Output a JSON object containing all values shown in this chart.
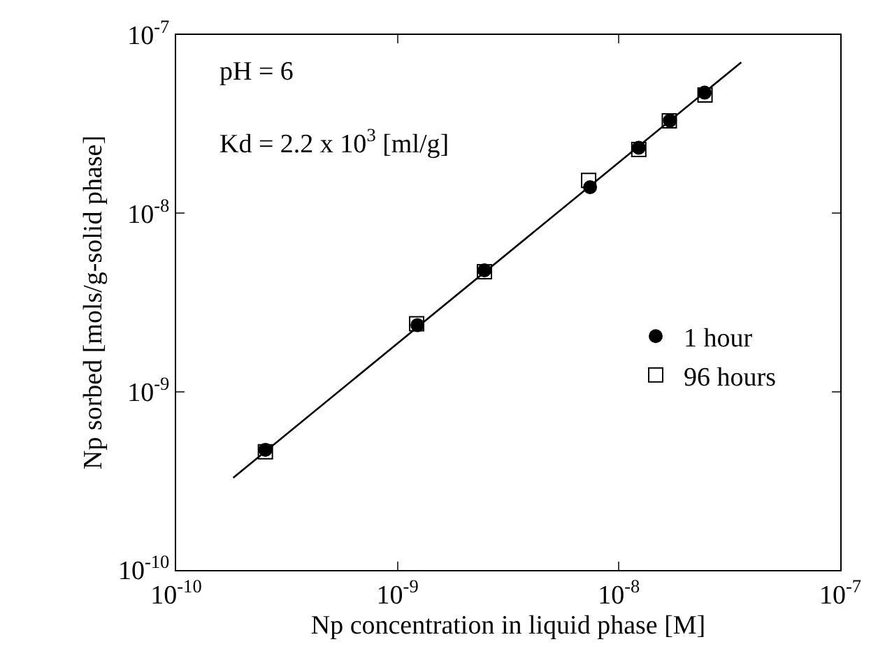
{
  "chart_data": {
    "type": "scatter",
    "xlabel": "Np concentration in liquid phase [M]",
    "ylabel": "Np sorbed [mols/g-solid phase]",
    "annotations": [
      "pH = 6",
      "Kd = 2.2 x 10$^{3}$ [ml/g]"
    ],
    "log": "xy",
    "legend": "right",
    "xlim": [
      1e-10,
      1e-07
    ],
    "ylim": [
      1e-10,
      1e-07
    ],
    "xticks": [
      {
        "value": 1e-10,
        "label": "10$^{-10}$"
      },
      {
        "value": 1e-09,
        "label": "10$^{-9}$"
      },
      {
        "value": 1e-08,
        "label": "10$^{-8}$"
      },
      {
        "value": 1e-07,
        "label": "10$^{-7}$"
      }
    ],
    "yticks": [
      {
        "value": 1e-10,
        "label": "10$^{-10}$"
      },
      {
        "value": 1e-09,
        "label": "10$^{-9}$"
      },
      {
        "value": 1e-08,
        "label": "10$^{-8}$"
      },
      {
        "value": 1e-07,
        "label": "10$^{-7}$"
      }
    ],
    "series": [
      {
        "type": "line",
        "marker": "none",
        "color": "#000000",
        "x": [
          1.81e-10,
          3.57e-08
        ],
        "values": [
          3.29e-10,
          7.02e-08
        ]
      },
      {
        "name": "96 hours",
        "marker": "square",
        "color": "#000000",
        "x": [
          2.53e-10,
          1.22e-09,
          2.47e-09,
          7.3e-09,
          1.23e-08,
          1.69e-08,
          2.45e-08
        ],
        "values": [
          4.6e-10,
          2.4e-09,
          4.7e-09,
          1.53e-08,
          2.28e-08,
          3.3e-08,
          4.6e-08
        ]
      },
      {
        "name": "1 hour",
        "marker": "circle",
        "color": "#000000",
        "x": [
          2.53e-10,
          1.23e-09,
          2.47e-09,
          7.41e-09,
          1.23e-08,
          1.7e-08,
          2.44e-08
        ],
        "values": [
          4.72e-10,
          2.36e-09,
          4.79e-09,
          1.4e-08,
          2.33e-08,
          3.31e-08,
          4.75e-08
        ]
      }
    ]
  }
}
